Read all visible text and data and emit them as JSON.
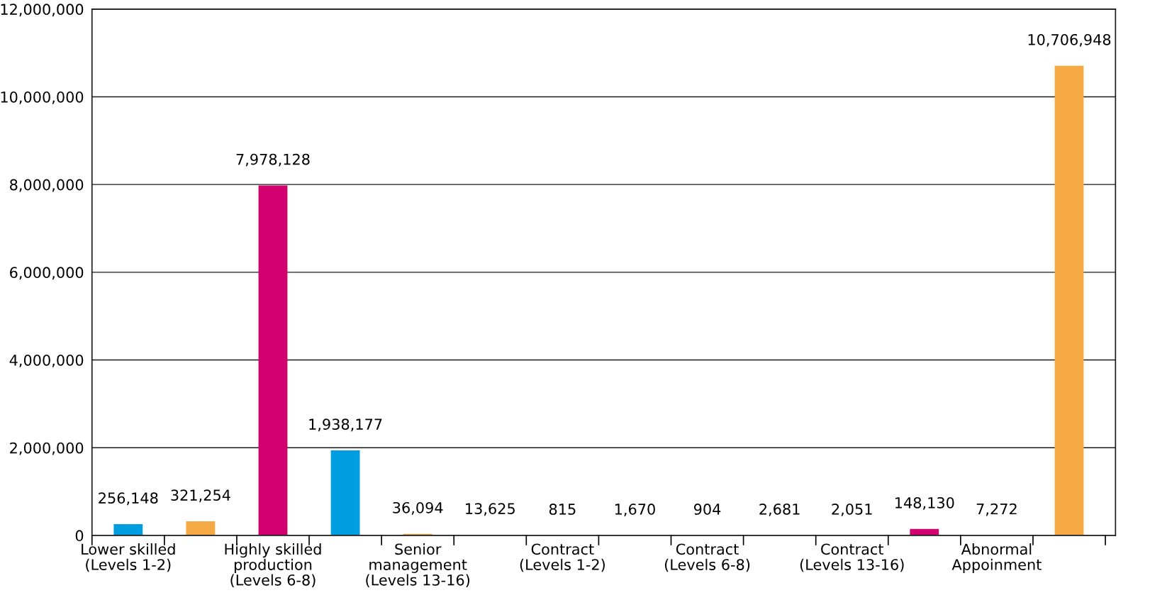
{
  "chart_data": {
    "type": "bar",
    "categories": [
      "Lower skilled\n(Levels 1-2)",
      null,
      "Highly skilled\nproduction\n(Levels 6-8)",
      null,
      "Senior\nmanagement\n(Levels 13-16)",
      null,
      "Contract\n(Levels 1-2)",
      null,
      "Contract\n(Levels 6-8)",
      null,
      "Contract\n(Levels 13-16)",
      null,
      "Abnormal\nAppoinment",
      null
    ],
    "values": [
      256148,
      321254,
      7978128,
      1938177,
      36094,
      13625,
      815,
      1670,
      904,
      2681,
      2051,
      148130,
      7272,
      10706948
    ],
    "value_labels": [
      "256,148",
      "321,254",
      "7,978,128",
      "1,938,177",
      "36,094",
      "13,625",
      "815",
      "1,670",
      "904",
      "2,681",
      "2,051",
      "148,130",
      "7,272",
      "10,706,948"
    ],
    "colors": [
      "#009ee0",
      "#f4a944",
      "#d1006f",
      "#009ee0",
      "#f4a944",
      "#d1006f",
      "#009ee0",
      "#f4a944",
      "#d1006f",
      "#009ee0",
      "#f4a944",
      "#d1006f",
      "#009ee0",
      "#f4a944"
    ],
    "ylim": [
      0,
      12000000
    ],
    "yticks": [
      0,
      {
        "value": 2000000,
        "label": "2,000,000"
      },
      {
        "value": 4000000,
        "label": "4,000,000"
      },
      {
        "value": 6000000,
        "label": "6,000,000"
      },
      {
        "value": 8000000,
        "label": "8,000,000"
      },
      {
        "value": 10000000,
        "label": "10,000,000"
      },
      {
        "value": 12000000,
        "label": "12,000,000"
      }
    ],
    "grid": "y"
  }
}
